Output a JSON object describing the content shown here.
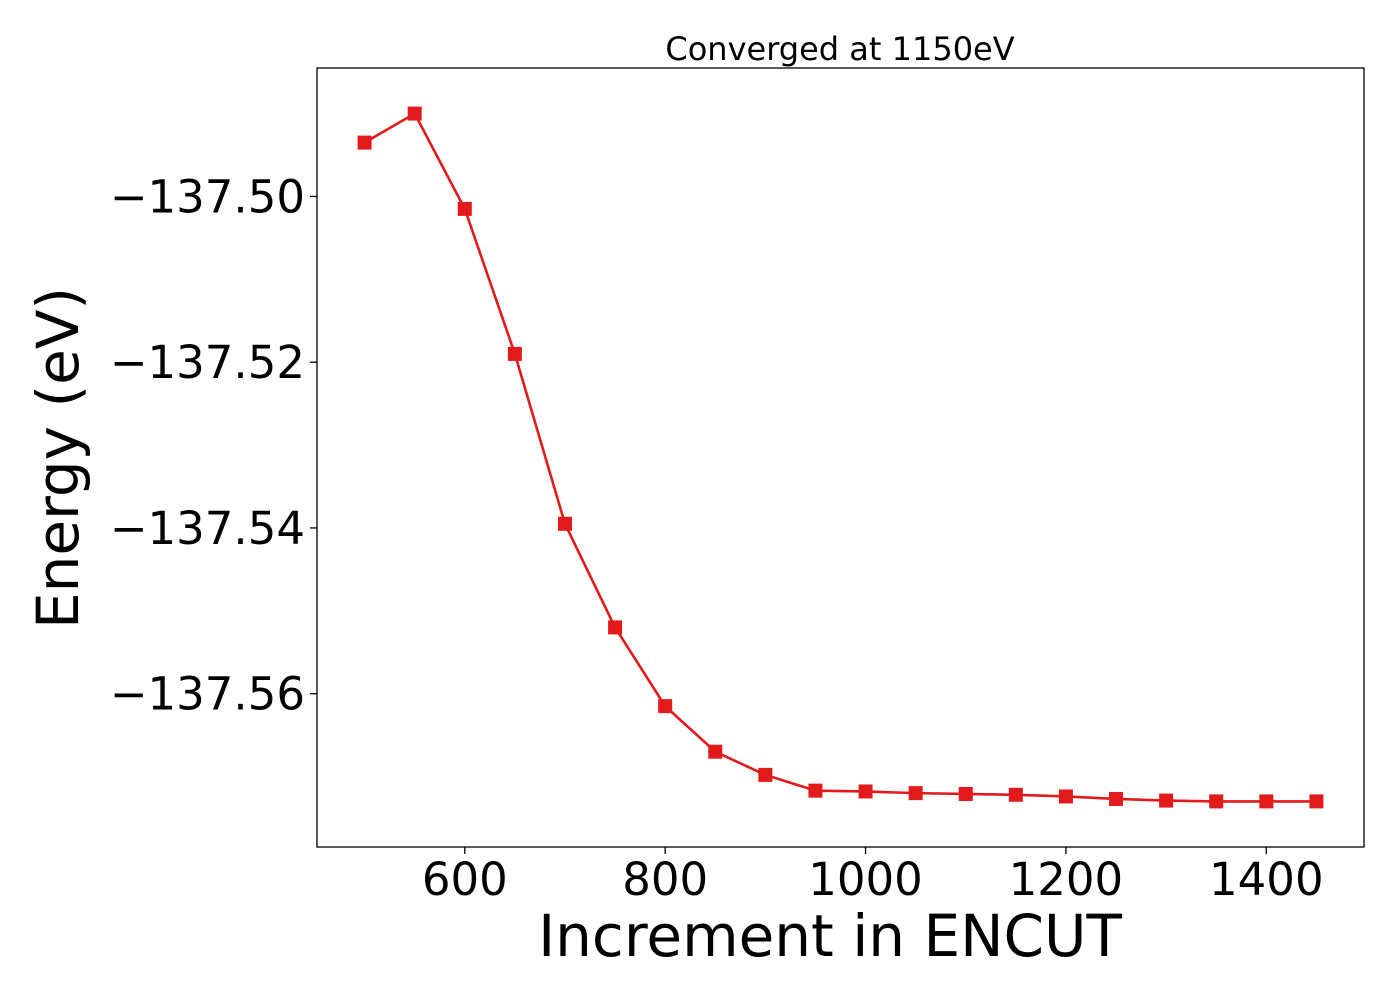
{
  "chart_data": {
    "type": "line",
    "title": "Converged at 1150eV",
    "xlabel": "Increment in ENCUT",
    "ylabel": "Energy (eV)",
    "xlim": [
      452.5,
      1497.5
    ],
    "ylim": [
      -137.5785,
      -137.4845
    ],
    "xticks": [
      600,
      800,
      1000,
      1200,
      1400
    ],
    "xtick_labels": [
      "600",
      "800",
      "1000",
      "1200",
      "1400"
    ],
    "yticks": [
      -137.5,
      -137.52,
      -137.54,
      -137.56
    ],
    "ytick_labels": [
      "−137.50",
      "−137.52",
      "−137.54",
      "−137.56"
    ],
    "grid": false,
    "marker": "square",
    "color": "#e31a1c",
    "series": [
      {
        "x": [
          500,
          550,
          600,
          650,
          700,
          750,
          800,
          850,
          900,
          950,
          1000,
          1050,
          1100,
          1150,
          1200,
          1250,
          1300,
          1350,
          1400,
          1450
        ],
        "y": [
          -137.4935,
          -137.49,
          -137.5015,
          -137.519,
          -137.5395,
          -137.552,
          -137.5615,
          -137.567,
          -137.5698,
          -137.5717,
          -137.5718,
          -137.572,
          -137.5721,
          -137.5722,
          -137.5724,
          -137.5727,
          -137.5729,
          -137.573,
          -137.573,
          -137.573
        ]
      }
    ]
  }
}
